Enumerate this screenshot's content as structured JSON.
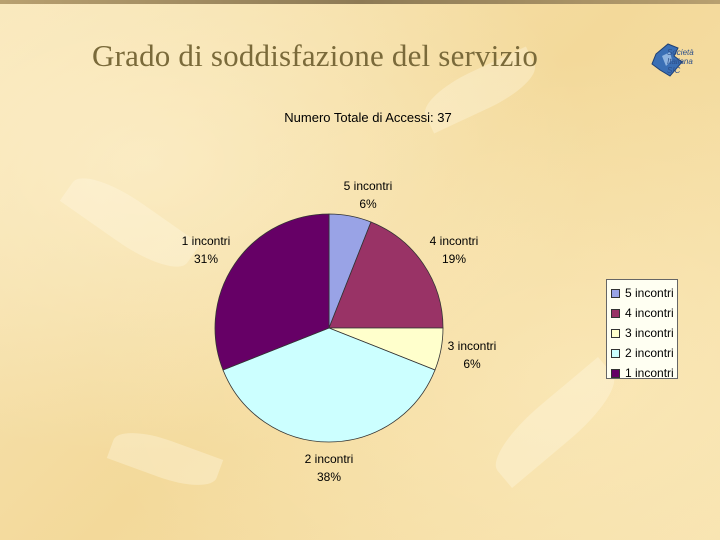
{
  "slide": {
    "title": "Grado di soddisfazione del servizio",
    "logo_text_line1": "Società",
    "logo_text_line2": "Italiana",
    "logo_text_line3": "SIC"
  },
  "chart_data": {
    "type": "pie",
    "title": "Numero Totale di Accessi: 37",
    "start_angle_deg": 0,
    "direction": "clockwise",
    "legend_position": "right",
    "slices": [
      {
        "label": "5 incontri",
        "value": 6,
        "percent_label": "6%",
        "color": "#99a3e6"
      },
      {
        "label": "4 incontri",
        "value": 19,
        "percent_label": "19%",
        "color": "#993366"
      },
      {
        "label": "3 incontri",
        "value": 6,
        "percent_label": "6%",
        "color": "#ffffcc"
      },
      {
        "label": "2 incontri",
        "value": 38,
        "percent_label": "38%",
        "color": "#ccffff"
      },
      {
        "label": "1 incontri",
        "value": 31,
        "percent_label": "31%",
        "color": "#660066"
      }
    ]
  }
}
